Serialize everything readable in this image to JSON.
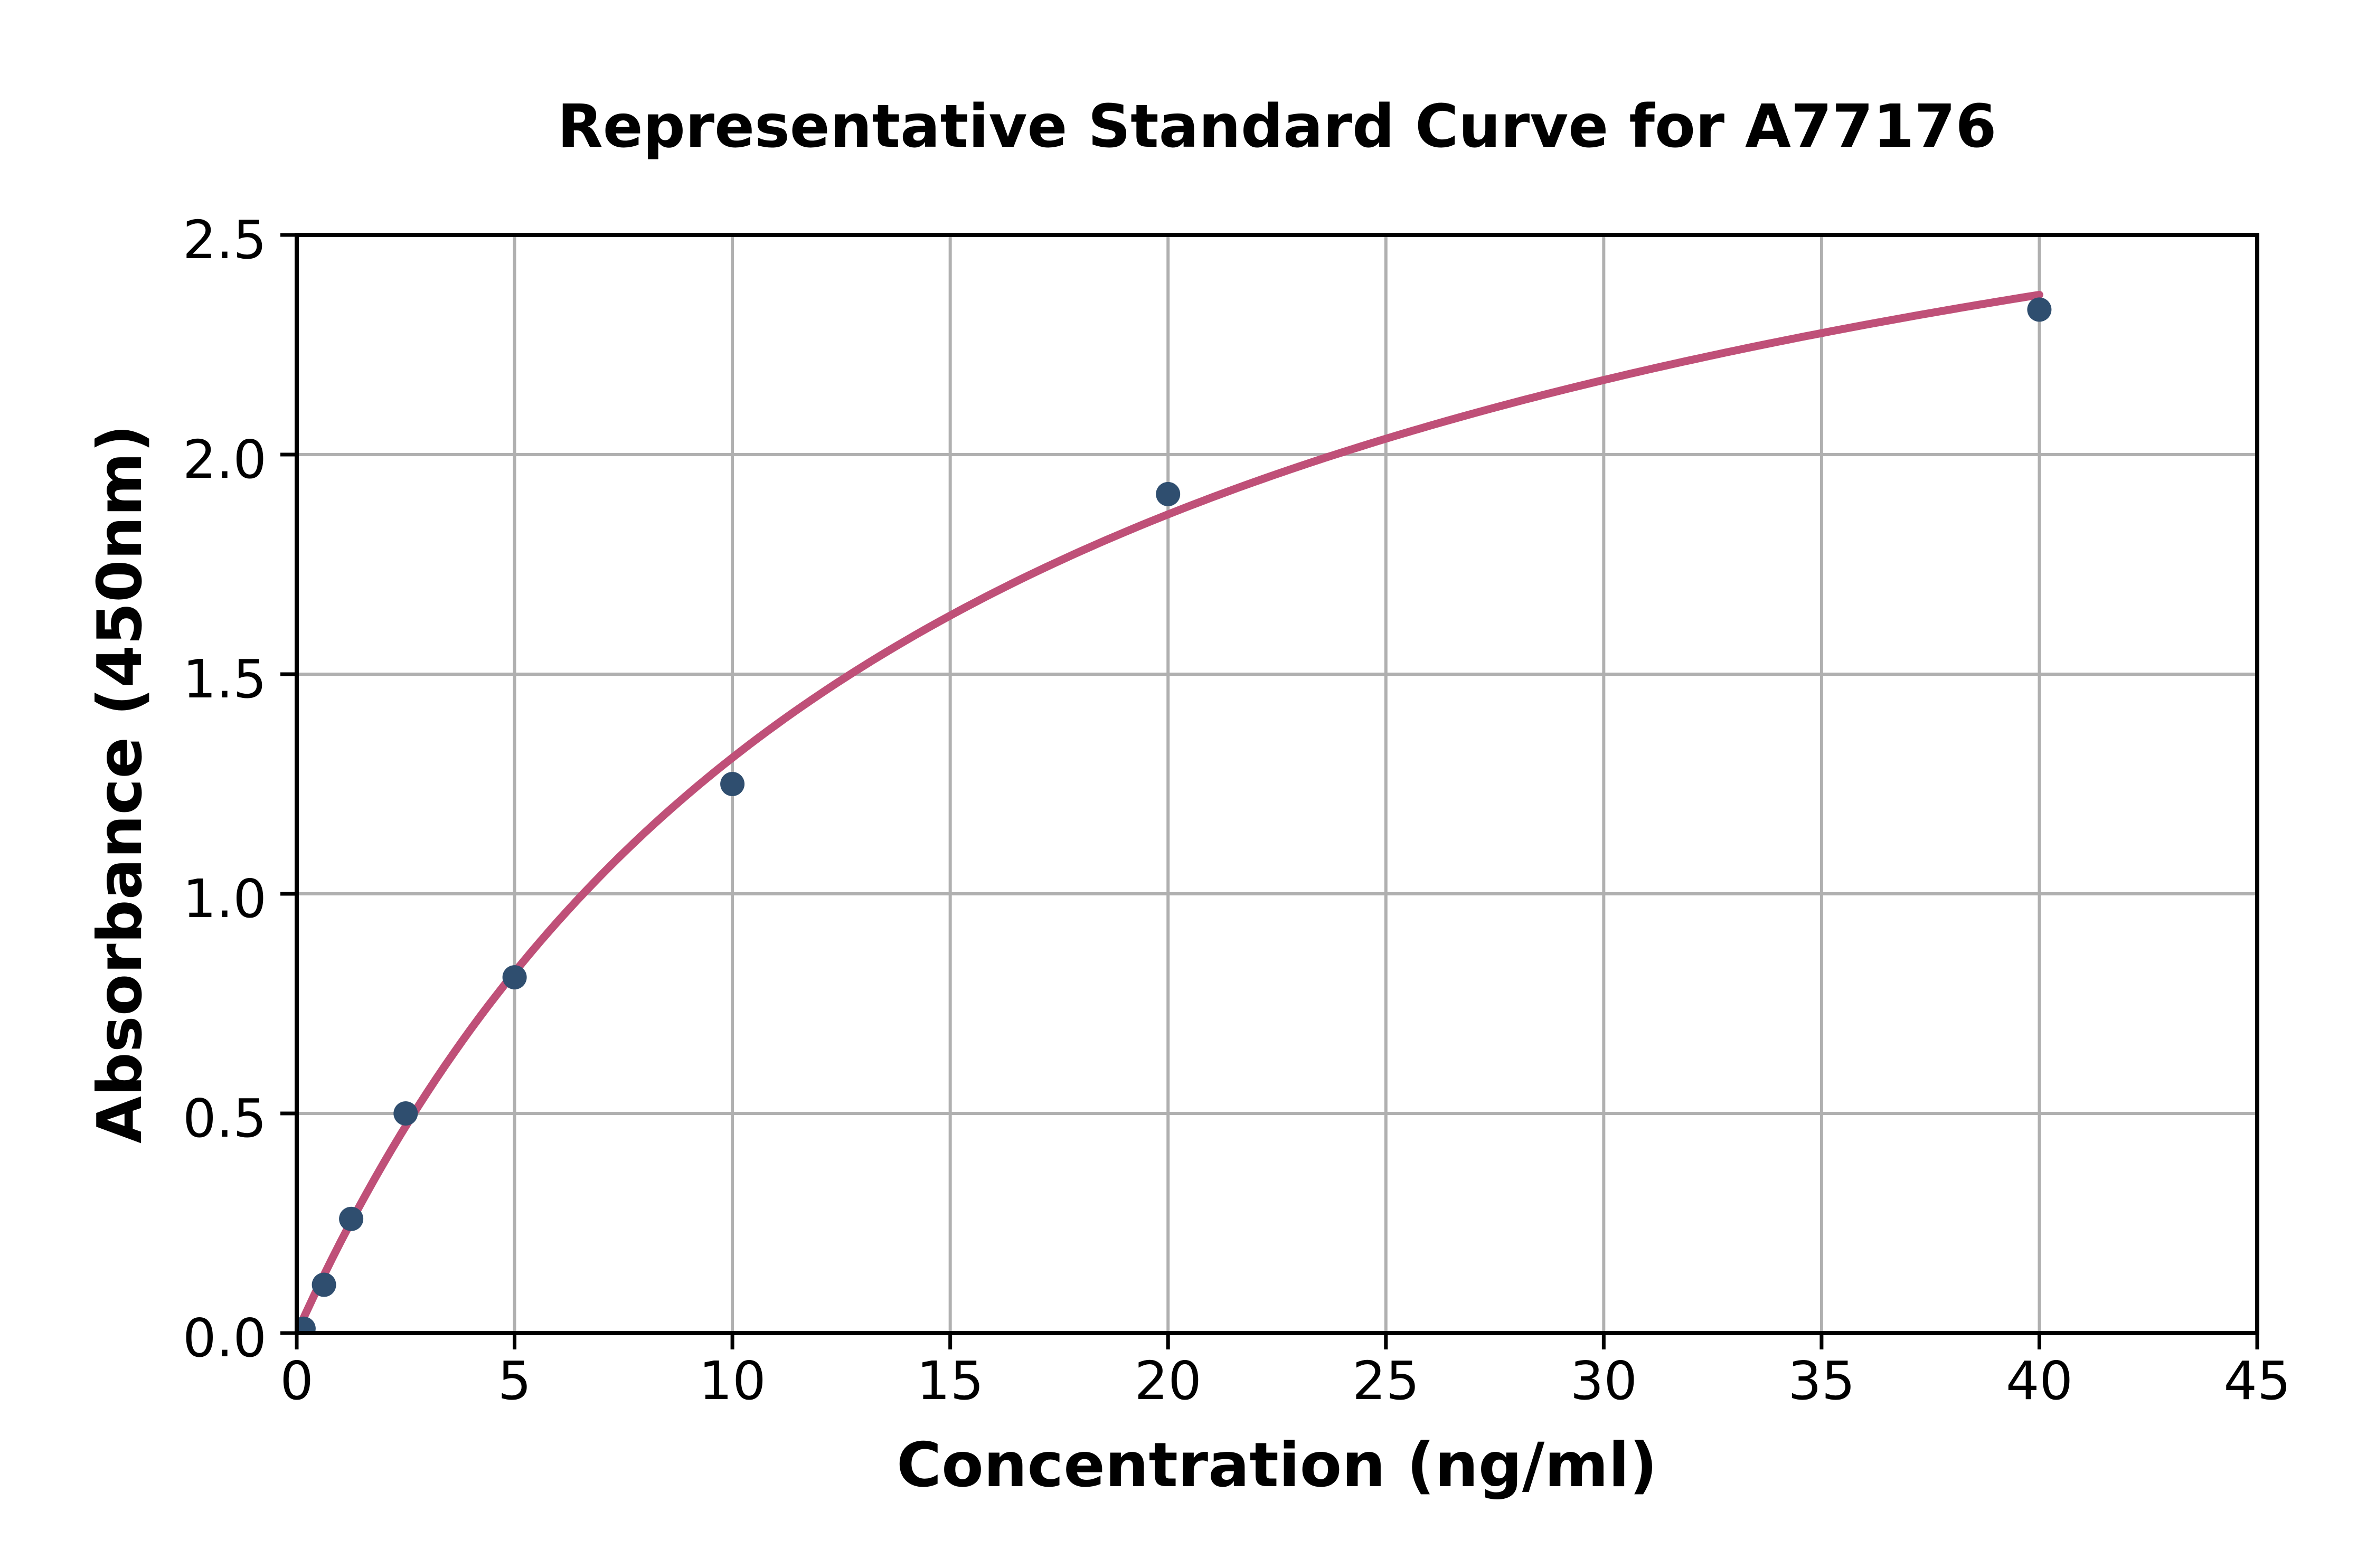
{
  "chart_data": {
    "type": "scatter",
    "title": "Representative Standard Curve for A77176",
    "xlabel": "Concentration (ng/ml)",
    "ylabel": "Absorbance (450nm)",
    "xlim": [
      0,
      45
    ],
    "ylim": [
      0,
      2.5
    ],
    "xticks": {
      "values": [
        0,
        5,
        10,
        15,
        20,
        25,
        30,
        35,
        40,
        45
      ],
      "labels": [
        "0",
        "5",
        "10",
        "15",
        "20",
        "25",
        "30",
        "35",
        "40",
        "45"
      ]
    },
    "yticks": {
      "values": [
        0.0,
        0.5,
        1.0,
        1.5,
        2.0,
        2.5
      ],
      "labels": [
        "0.0",
        "0.5",
        "1.0",
        "1.5",
        "2.0",
        "2.5"
      ]
    },
    "grid": true,
    "legend": false,
    "points": {
      "x": [
        0.156,
        0.625,
        1.25,
        2.5,
        5,
        10,
        20,
        40
      ],
      "y": [
        0.01,
        0.11,
        0.26,
        0.5,
        0.81,
        1.25,
        1.91,
        2.33
      ]
    },
    "fit_curve": {
      "model": "michaelis_menten",
      "formula": "y = Vmax*x / (K + x)",
      "vmax": 3.23,
      "k": 14.66,
      "x_start": 0,
      "x_end": 40
    },
    "colors": {
      "curve": "#bf5078",
      "points": "#2f4e6f",
      "grid": "#b0b0b0",
      "spines": "#000000",
      "ticks": "#000000",
      "background": "#ffffff",
      "text": "#000000"
    }
  }
}
